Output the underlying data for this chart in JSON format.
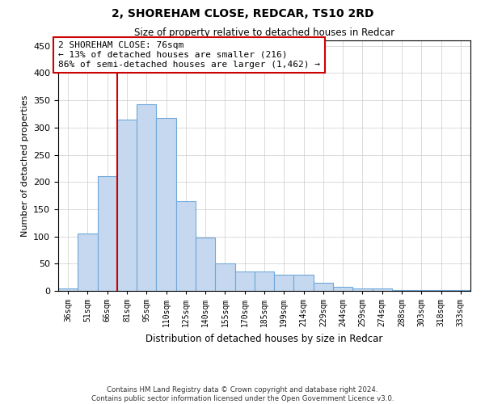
{
  "title": "2, SHOREHAM CLOSE, REDCAR, TS10 2RD",
  "subtitle": "Size of property relative to detached houses in Redcar",
  "xlabel": "Distribution of detached houses by size in Redcar",
  "ylabel": "Number of detached properties",
  "categories": [
    "36sqm",
    "51sqm",
    "66sqm",
    "81sqm",
    "95sqm",
    "110sqm",
    "125sqm",
    "140sqm",
    "155sqm",
    "170sqm",
    "185sqm",
    "199sqm",
    "214sqm",
    "229sqm",
    "244sqm",
    "259sqm",
    "274sqm",
    "288sqm",
    "303sqm",
    "318sqm",
    "333sqm"
  ],
  "values": [
    5,
    105,
    210,
    315,
    343,
    318,
    165,
    98,
    50,
    35,
    35,
    29,
    29,
    15,
    8,
    5,
    5,
    2,
    1,
    1,
    1
  ],
  "bar_color": "#c5d8f0",
  "bar_edge_color": "#6fa8d8",
  "vline_x": 2.5,
  "vline_color": "#cc0000",
  "annotation_text": "2 SHOREHAM CLOSE: 76sqm\n← 13% of detached houses are smaller (216)\n86% of semi-detached houses are larger (1,462) →",
  "annotation_box_color": "#ffffff",
  "annotation_box_edge": "#cc0000",
  "ylim": [
    0,
    460
  ],
  "yticks": [
    0,
    50,
    100,
    150,
    200,
    250,
    300,
    350,
    400,
    450
  ],
  "footer": "Contains HM Land Registry data © Crown copyright and database right 2024.\nContains public sector information licensed under the Open Government Licence v3.0.",
  "bg_color": "#ffffff",
  "grid_color": "#cccccc"
}
